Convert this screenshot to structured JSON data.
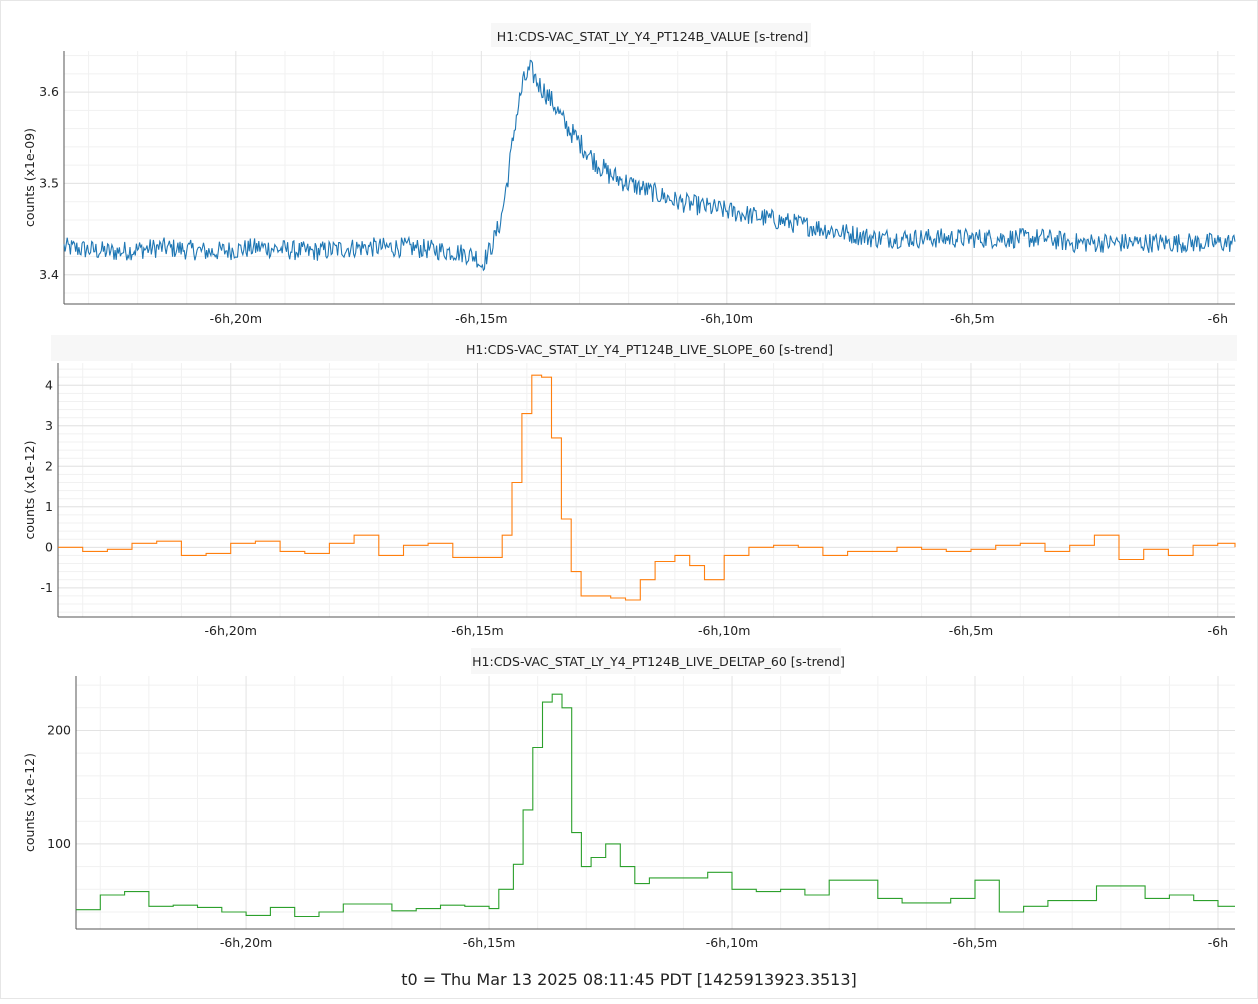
{
  "footer": "t0 = Thu Mar 13 2025 08:11:45 PDT [1425913923.3513]",
  "chart_data": [
    {
      "type": "line",
      "title": "H1:CDS-VAC_STAT_LY_Y4_PT124B_VALUE [s-trend]",
      "ylabel": "counts (x1e-09)",
      "xlabel": "",
      "x_unit": "minutes relative to t0 (-6h)",
      "xlim": [
        -23.5,
        0.35
      ],
      "ylim": [
        3.368,
        3.645
      ],
      "yticks": [
        3.4,
        3.5,
        3.6
      ],
      "ytick_labels": [
        "3.4",
        "3.5",
        "3.6"
      ],
      "xticks": [
        -20,
        -15,
        -10,
        -5,
        0
      ],
      "xtick_labels": [
        "-6h,20m",
        "-6h,15m",
        "-6h,10m",
        "-6h,5m",
        "-6h"
      ],
      "grid": true,
      "color": "#1f77b4",
      "series": [
        {
          "x": [
            -23.5,
            -22.5,
            -21.5,
            -20.5,
            -19.5,
            -18.5,
            -17.5,
            -16.5,
            -15.5,
            -15.1,
            -15.0,
            -14.8,
            -14.6,
            -14.45,
            -14.3,
            -14.15,
            -14.0,
            -13.85,
            -13.7,
            -13.5,
            -13.3,
            -13.0,
            -12.7,
            -12.4,
            -12.0,
            -11.5,
            -11.0,
            -10.5,
            -10.0,
            -9.5,
            -9.0,
            -8.5,
            -8.0,
            -7.5,
            -7.0,
            -6.5,
            -6.0,
            -5.5,
            -5.0,
            -4.5,
            -4.0,
            -3.5,
            -3.0,
            -2.5,
            -2.0,
            -1.5,
            -1.0,
            -0.5,
            0.0,
            0.35
          ],
          "y": [
            3.43,
            3.425,
            3.43,
            3.425,
            3.43,
            3.425,
            3.43,
            3.43,
            3.425,
            3.42,
            3.41,
            3.43,
            3.46,
            3.51,
            3.57,
            3.61,
            3.625,
            3.61,
            3.6,
            3.585,
            3.565,
            3.545,
            3.525,
            3.51,
            3.5,
            3.49,
            3.48,
            3.475,
            3.47,
            3.465,
            3.46,
            3.455,
            3.45,
            3.445,
            3.44,
            3.44,
            3.44,
            3.44,
            3.44,
            3.44,
            3.44,
            3.44,
            3.435,
            3.435,
            3.435,
            3.435,
            3.435,
            3.435,
            3.435,
            3.435
          ]
        }
      ]
    },
    {
      "type": "line",
      "title": "H1:CDS-VAC_STAT_LY_Y4_PT124B_LIVE_SLOPE_60 [s-trend]",
      "ylabel": "counts (x1e-12)",
      "xlabel": "",
      "x_unit": "minutes relative to t0 (-6h)",
      "xlim": [
        -23.5,
        0.35
      ],
      "ylim": [
        -1.72,
        4.55
      ],
      "yticks": [
        -1,
        0,
        1,
        2,
        3,
        4
      ],
      "ytick_labels": [
        "-1",
        "0",
        "1",
        "2",
        "3",
        "4"
      ],
      "xticks": [
        -20,
        -15,
        -10,
        -5,
        0
      ],
      "xtick_labels": [
        "-6h,20m",
        "-6h,15m",
        "-6h,10m",
        "-6h,5m",
        "-6h"
      ],
      "grid": true,
      "color": "#ff7f0e",
      "series": [
        {
          "x": [
            -23.5,
            -23.0,
            -22.5,
            -22.0,
            -21.5,
            -21.0,
            -20.5,
            -20.0,
            -19.5,
            -19.0,
            -18.5,
            -18.0,
            -17.5,
            -17.0,
            -16.5,
            -16.0,
            -15.5,
            -15.0,
            -14.5,
            -14.3,
            -14.1,
            -13.9,
            -13.7,
            -13.5,
            -13.3,
            -13.1,
            -12.9,
            -12.6,
            -12.3,
            -12.0,
            -11.7,
            -11.4,
            -11.0,
            -10.7,
            -10.4,
            -10.0,
            -9.5,
            -9.0,
            -8.5,
            -8.0,
            -7.5,
            -7.0,
            -6.5,
            -6.0,
            -5.5,
            -5.0,
            -4.5,
            -4.0,
            -3.5,
            -3.0,
            -2.5,
            -2.0,
            -1.5,
            -1.0,
            -0.5,
            0.0,
            0.35
          ],
          "y": [
            0.0,
            -0.1,
            -0.05,
            0.1,
            0.15,
            -0.2,
            -0.15,
            0.1,
            0.15,
            -0.1,
            -0.15,
            0.1,
            0.3,
            -0.2,
            0.05,
            0.1,
            -0.25,
            -0.25,
            0.3,
            1.6,
            3.3,
            4.25,
            4.2,
            2.7,
            0.7,
            -0.6,
            -1.2,
            -1.2,
            -1.25,
            -1.3,
            -0.8,
            -0.35,
            -0.2,
            -0.45,
            -0.8,
            -0.2,
            0.0,
            0.05,
            0.0,
            -0.2,
            -0.1,
            -0.1,
            0.0,
            -0.05,
            -0.1,
            -0.05,
            0.05,
            0.1,
            -0.1,
            0.05,
            0.3,
            -0.3,
            -0.05,
            -0.2,
            0.05,
            0.1,
            0.0
          ]
        }
      ]
    },
    {
      "type": "line",
      "title": "H1:CDS-VAC_STAT_LY_Y4_PT124B_LIVE_DELTAP_60 [s-trend]",
      "ylabel": "counts (x1e-12)",
      "xlabel": "",
      "x_unit": "minutes relative to t0 (-6h)",
      "xlim": [
        -23.5,
        0.35
      ],
      "ylim": [
        25,
        248
      ],
      "yticks": [
        100,
        200
      ],
      "ytick_labels": [
        "100",
        "200"
      ],
      "xticks": [
        -20,
        -15,
        -10,
        -5,
        0
      ],
      "xtick_labels": [
        "-6h,20m",
        "-6h,15m",
        "-6h,10m",
        "-6h,5m",
        "-6h"
      ],
      "grid": true,
      "color": "#2ca02c",
      "series": [
        {
          "x": [
            -23.5,
            -23.0,
            -22.5,
            -22.0,
            -21.5,
            -21.0,
            -20.5,
            -20.0,
            -19.5,
            -19.0,
            -18.5,
            -18.0,
            -17.5,
            -17.0,
            -16.5,
            -16.0,
            -15.5,
            -15.0,
            -14.8,
            -14.5,
            -14.3,
            -14.1,
            -13.9,
            -13.7,
            -13.5,
            -13.3,
            -13.1,
            -12.9,
            -12.6,
            -12.3,
            -12.0,
            -11.7,
            -11.4,
            -11.0,
            -10.5,
            -10.0,
            -9.5,
            -9.0,
            -8.5,
            -8.0,
            -7.5,
            -7.0,
            -6.5,
            -6.0,
            -5.5,
            -5.0,
            -4.5,
            -4.0,
            -3.5,
            -3.0,
            -2.5,
            -2.0,
            -1.5,
            -1.0,
            -0.5,
            0.0,
            0.35
          ],
          "y": [
            42,
            55,
            58,
            45,
            46,
            44,
            40,
            37,
            44,
            36,
            40,
            47,
            47,
            41,
            43,
            46,
            45,
            43,
            60,
            82,
            130,
            185,
            225,
            232,
            220,
            110,
            80,
            88,
            100,
            80,
            65,
            70,
            70,
            70,
            75,
            60,
            58,
            60,
            55,
            68,
            68,
            52,
            48,
            48,
            52,
            68,
            40,
            45,
            50,
            50,
            63,
            63,
            52,
            55,
            50,
            45,
            45
          ]
        }
      ]
    }
  ]
}
